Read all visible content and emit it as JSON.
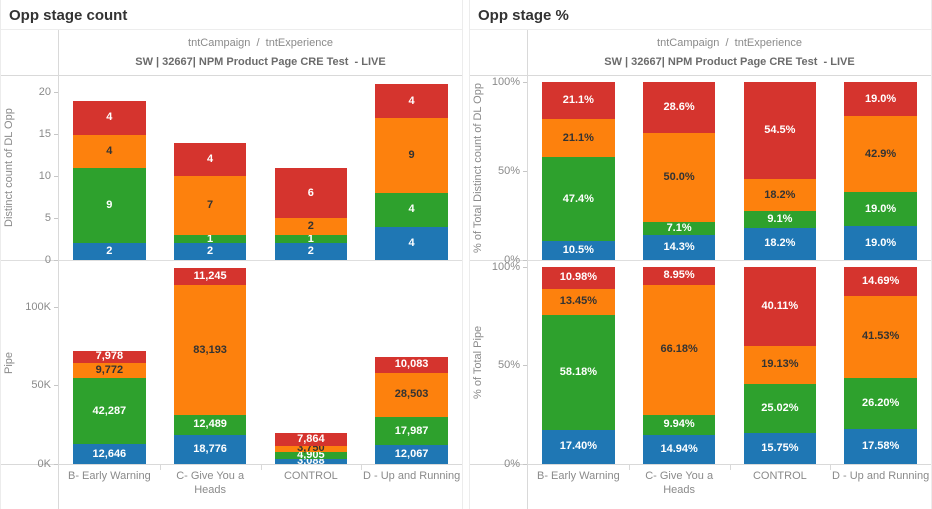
{
  "colors": {
    "blue": "#1f77b4",
    "green": "#2ea12d",
    "orange": "#fd810d",
    "red": "#d5342e",
    "label_light": "#ffffff",
    "label_dark": "#333333",
    "axis_text": "#8a8a8a"
  },
  "categories": [
    "B- Early Warning",
    "C- Give You a Heads",
    "CONTROL",
    "D - Up and Running"
  ],
  "panels": [
    {
      "title": "Opp stage count",
      "header_line1": "tntCampaign  /  tntExperience",
      "header_line2": "SW | 32667| NPM Product Page CRE Test  - LIVE"
    },
    {
      "title": "Opp stage %",
      "header_line1": "tntCampaign  /  tntExperience",
      "header_line2": "SW | 32667| NPM Product Page CRE Test  - LIVE"
    }
  ],
  "chart_data": [
    {
      "type": "bar",
      "stacked": true,
      "title": "Opp stage count - Distinct count of DL Opp",
      "ylabel": "Distinct count of DL Opp",
      "xlabel": "tntCampaign / tntExperience",
      "ylim": [
        0,
        22
      ],
      "top_pad": 0,
      "grid": false,
      "legend": "none",
      "categories": [
        "B- Early Warning",
        "C- Give You a Heads",
        "CONTROL",
        "D - Up and Running"
      ],
      "yticks": [
        {
          "v": 0,
          "label": "0"
        },
        {
          "v": 5,
          "label": "5"
        },
        {
          "v": 10,
          "label": "10"
        },
        {
          "v": 15,
          "label": "15"
        },
        {
          "v": 20,
          "label": "20"
        }
      ],
      "series": [
        {
          "name": "blue",
          "values": [
            2,
            2,
            2,
            4
          ],
          "labels": [
            "2",
            "2",
            "2",
            "4"
          ]
        },
        {
          "name": "green",
          "values": [
            9,
            1,
            1,
            4
          ],
          "labels": [
            "9",
            "1",
            "1",
            "4"
          ]
        },
        {
          "name": "orange",
          "values": [
            4,
            7,
            2,
            9
          ],
          "labels": [
            "4",
            "7",
            "2",
            "9"
          ]
        },
        {
          "name": "red",
          "values": [
            4,
            4,
            6,
            4
          ],
          "labels": [
            "4",
            "4",
            "6",
            "4"
          ]
        }
      ]
    },
    {
      "type": "bar",
      "stacked": true,
      "title": "Opp stage count - Pipe",
      "ylabel": "Pipe",
      "xlabel": "tntCampaign / tntExperience",
      "ylim": [
        0,
        130000
      ],
      "top_pad": 0,
      "grid": false,
      "legend": "none",
      "categories": [
        "B- Early Warning",
        "C- Give You a Heads",
        "CONTROL",
        "D - Up and Running"
      ],
      "yticks": [
        {
          "v": 0,
          "label": "0K"
        },
        {
          "v": 50000,
          "label": "50K"
        },
        {
          "v": 100000,
          "label": "100K"
        }
      ],
      "series": [
        {
          "name": "blue",
          "values": [
            12646,
            18776,
            3088,
            12067
          ],
          "labels": [
            "12,646",
            "18,776",
            "3,088",
            "12,067"
          ]
        },
        {
          "name": "green",
          "values": [
            42287,
            12489,
            4905,
            17987
          ],
          "labels": [
            "42,287",
            "12,489",
            "4,905",
            "17,987"
          ]
        },
        {
          "name": "orange",
          "values": [
            9772,
            83193,
            3750,
            28503
          ],
          "labels": [
            "9,772",
            "83,193",
            "3,750",
            "28,503"
          ]
        },
        {
          "name": "red",
          "values": [
            7978,
            11245,
            7864,
            10083
          ],
          "labels": [
            "7,978",
            "11,245",
            "7,864",
            "10,083"
          ]
        }
      ]
    },
    {
      "type": "bar",
      "stacked": true,
      "title": "Opp stage % - % of Total Distinct count of DL Opp",
      "ylabel": "% of Total Distinct count of DL Opp",
      "xlabel": "tntCampaign / tntExperience",
      "ylim": [
        0,
        100
      ],
      "top_pad": 6,
      "grid": false,
      "legend": "none",
      "categories": [
        "B- Early Warning",
        "C- Give You a Heads",
        "CONTROL",
        "D - Up and Running"
      ],
      "yticks": [
        {
          "v": 0,
          "label": "0%"
        },
        {
          "v": 50,
          "label": "50%"
        },
        {
          "v": 100,
          "label": "100%"
        }
      ],
      "series": [
        {
          "name": "blue",
          "values": [
            10.5,
            14.3,
            18.2,
            19.0
          ],
          "labels": [
            "10.5%",
            "14.3%",
            "18.2%",
            "19.0%"
          ]
        },
        {
          "name": "green",
          "values": [
            47.4,
            7.1,
            9.1,
            19.0
          ],
          "labels": [
            "47.4%",
            "7.1%",
            "9.1%",
            "19.0%"
          ]
        },
        {
          "name": "orange",
          "values": [
            21.1,
            50.0,
            18.2,
            42.9
          ],
          "labels": [
            "21.1%",
            "50.0%",
            "18.2%",
            "42.9%"
          ]
        },
        {
          "name": "red",
          "values": [
            21.1,
            28.6,
            54.5,
            19.0
          ],
          "labels": [
            "21.1%",
            "28.6%",
            "54.5%",
            "19.0%"
          ]
        }
      ]
    },
    {
      "type": "bar",
      "stacked": true,
      "title": "Opp stage % - % of Total Pipe",
      "ylabel": "% of Total Pipe",
      "xlabel": "tntCampaign / tntExperience",
      "ylim": [
        0,
        100
      ],
      "top_pad": 6,
      "grid": false,
      "legend": "none",
      "categories": [
        "B- Early Warning",
        "C- Give You a Heads",
        "CONTROL",
        "D - Up and Running"
      ],
      "yticks": [
        {
          "v": 0,
          "label": "0%"
        },
        {
          "v": 50,
          "label": "50%"
        },
        {
          "v": 100,
          "label": "100%"
        }
      ],
      "series": [
        {
          "name": "blue",
          "values": [
            17.4,
            14.94,
            15.75,
            17.58
          ],
          "labels": [
            "17.40%",
            "14.94%",
            "15.75%",
            "17.58%"
          ]
        },
        {
          "name": "green",
          "values": [
            58.18,
            9.94,
            25.02,
            26.2
          ],
          "labels": [
            "58.18%",
            "9.94%",
            "25.02%",
            "26.20%"
          ]
        },
        {
          "name": "orange",
          "values": [
            13.45,
            66.18,
            19.13,
            41.53
          ],
          "labels": [
            "13.45%",
            "66.18%",
            "19.13%",
            "41.53%"
          ]
        },
        {
          "name": "red",
          "values": [
            10.98,
            8.95,
            40.11,
            14.69
          ],
          "labels": [
            "10.98%",
            "8.95%",
            "40.11%",
            "14.69%"
          ]
        }
      ]
    }
  ]
}
